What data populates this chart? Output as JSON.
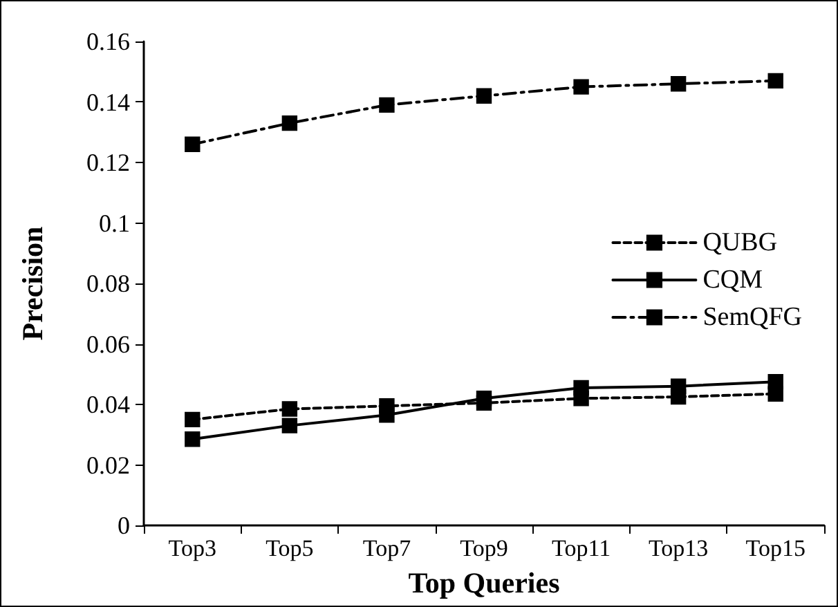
{
  "chart_data": {
    "type": "line",
    "xlabel": "Top Queries",
    "ylabel": "Precision",
    "categories": [
      "Top3",
      "Top5",
      "Top7",
      "Top9",
      "Top11",
      "Top13",
      "Top15"
    ],
    "series": [
      {
        "name": "QUBG",
        "color": "#000000",
        "line_style": "dashed",
        "values": [
          0.035,
          0.0385,
          0.0395,
          0.0405,
          0.042,
          0.0425,
          0.0435
        ]
      },
      {
        "name": "CQM",
        "color": "#000000",
        "line_style": "solid",
        "values": [
          0.0285,
          0.033,
          0.0365,
          0.042,
          0.0455,
          0.046,
          0.0475
        ]
      },
      {
        "name": "SemQFG",
        "color": "#000000",
        "line_style": "dashdot",
        "values": [
          0.126,
          0.133,
          0.139,
          0.142,
          0.145,
          0.146,
          0.147
        ]
      }
    ],
    "ylim": [
      0,
      0.16
    ],
    "yticks": [
      0,
      0.02,
      0.04,
      0.06,
      0.08,
      0.1,
      0.12,
      0.14,
      0.16
    ],
    "marker": "square",
    "grid": false,
    "legend": "right"
  }
}
